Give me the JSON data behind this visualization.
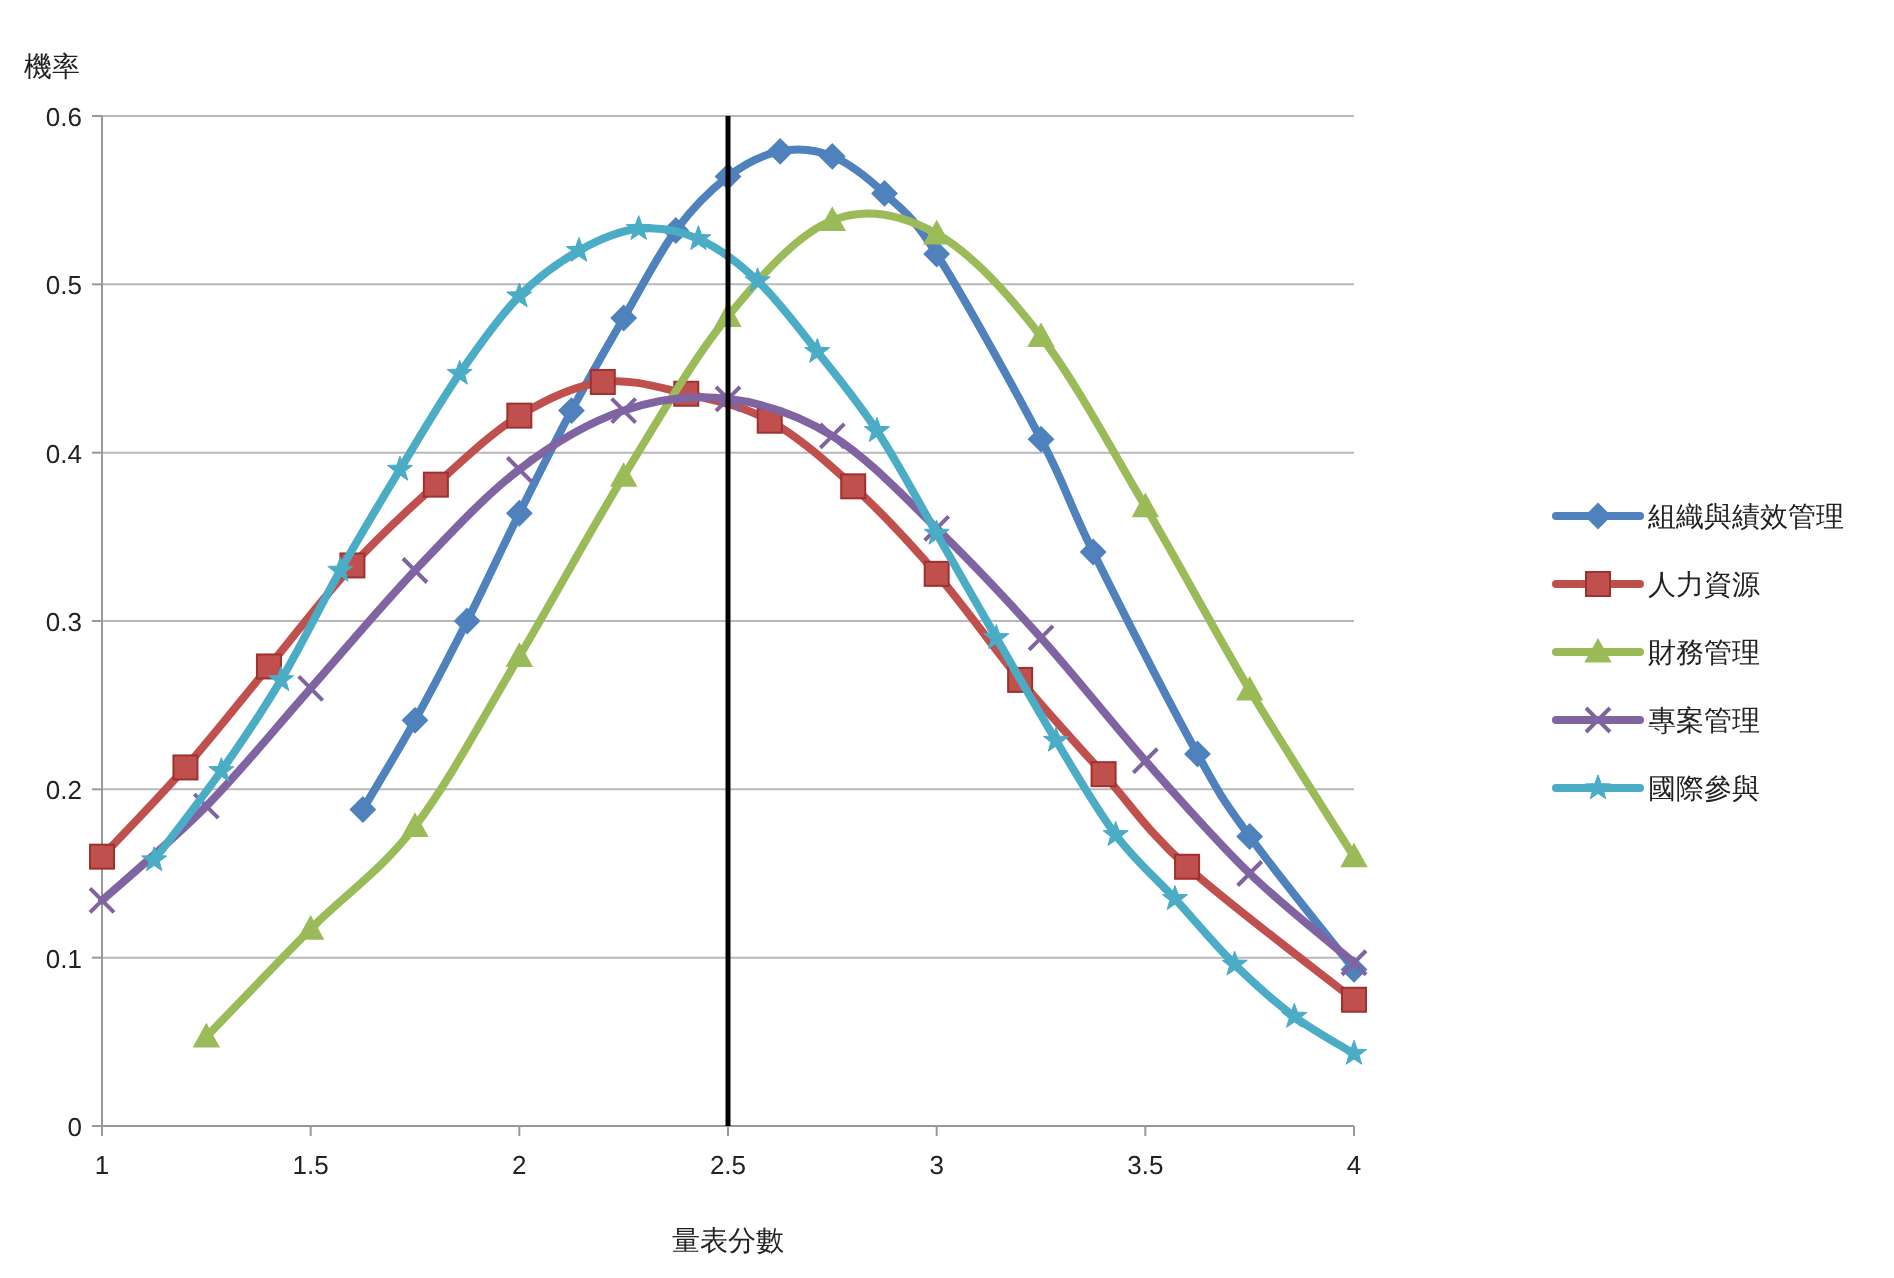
{
  "chart_data": {
    "type": "line",
    "xlabel": "量表分數",
    "ylabel": "機率",
    "xlim": [
      1,
      4
    ],
    "ylim": [
      0,
      0.6
    ],
    "xticks": [
      1,
      1.5,
      2,
      2.5,
      3,
      3.5,
      4
    ],
    "yticks": [
      0,
      0.1,
      0.2,
      0.3,
      0.4,
      0.5,
      0.6
    ],
    "grid": "y",
    "legend": "right",
    "ref_lines": [
      {
        "axis": "x",
        "value": 2.5,
        "color": "#000000"
      }
    ],
    "series": [
      {
        "name": "組織與績效管理",
        "color": "#4f81bd",
        "marker": "diamond",
        "x": [
          1.625,
          1.75,
          1.875,
          2,
          2.125,
          2.25,
          2.375,
          2.5,
          2.625,
          2.75,
          2.875,
          3,
          3.25,
          3.375,
          3.625,
          3.75,
          4
        ],
        "values": [
          0.188,
          0.241,
          0.3,
          0.364,
          0.425,
          0.48,
          0.532,
          0.564,
          0.579,
          0.576,
          0.554,
          0.518,
          0.408,
          0.341,
          0.221,
          0.172,
          0.093
        ]
      },
      {
        "name": "人力資源",
        "color": "#c0504d",
        "marker": "square",
        "x": [
          1,
          1.2,
          1.4,
          1.6,
          1.8,
          2,
          2.2,
          2.4,
          2.6,
          2.8,
          3,
          3.2,
          3.4,
          3.6,
          4
        ],
        "values": [
          0.16,
          0.213,
          0.273,
          0.333,
          0.381,
          0.422,
          0.442,
          0.435,
          0.419,
          0.38,
          0.328,
          0.265,
          0.209,
          0.154,
          0.075
        ]
      },
      {
        "name": "財務管理",
        "color": "#9bbb59",
        "marker": "triangle",
        "x": [
          1.25,
          1.5,
          1.75,
          2,
          2.25,
          2.5,
          2.75,
          3,
          3.25,
          3.5,
          3.75,
          4
        ],
        "values": [
          0.053,
          0.117,
          0.178,
          0.279,
          0.386,
          0.481,
          0.538,
          0.53,
          0.469,
          0.368,
          0.259,
          0.16
        ]
      },
      {
        "name": "專案管理",
        "color": "#8064a2",
        "marker": "cross",
        "x": [
          1,
          1.25,
          1.5,
          1.75,
          2,
          2.25,
          2.5,
          2.75,
          3,
          3.25,
          3.5,
          3.75,
          4
        ],
        "values": [
          0.134,
          0.19,
          0.26,
          0.33,
          0.39,
          0.425,
          0.432,
          0.41,
          0.355,
          0.29,
          0.217,
          0.15,
          0.097
        ]
      },
      {
        "name": "國際參與",
        "color": "#4bacc6",
        "marker": "star",
        "x": [
          1.125,
          1.286,
          1.429,
          1.571,
          1.714,
          1.857,
          2,
          2.143,
          2.286,
          2.429,
          2.571,
          2.714,
          2.857,
          3,
          3.143,
          3.286,
          3.429,
          3.571,
          3.714,
          3.857,
          4
        ],
        "values": [
          0.158,
          0.211,
          0.265,
          0.33,
          0.39,
          0.447,
          0.493,
          0.52,
          0.533,
          0.527,
          0.502,
          0.46,
          0.413,
          0.352,
          0.29,
          0.229,
          0.173,
          0.135,
          0.096,
          0.065,
          0.043
        ]
      }
    ]
  }
}
